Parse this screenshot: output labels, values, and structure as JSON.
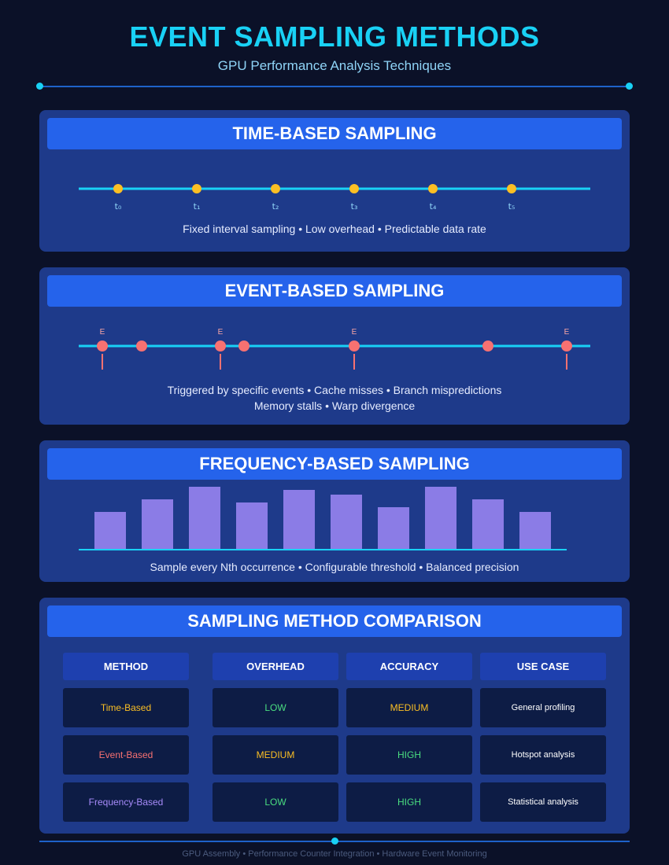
{
  "header": {
    "title": "EVENT SAMPLING METHODS",
    "subtitle": "GPU Performance Analysis Techniques"
  },
  "time_based": {
    "title": "TIME-BASED SAMPLING",
    "tick_labels": [
      "t₀",
      "t₁",
      "t₂",
      "t₃",
      "t₄",
      "t₅"
    ],
    "caption": "Fixed interval sampling • Low overhead • Predictable data rate"
  },
  "event_based": {
    "title": "EVENT-BASED SAMPLING",
    "event_marker_label": "E",
    "caption_line1": "Triggered by specific events • Cache misses • Branch mispredictions",
    "caption_line2": "Memory stalls • Warp divergence"
  },
  "frequency_based": {
    "title": "FREQUENCY-BASED SAMPLING",
    "bar_levels": [
      0.6,
      0.8,
      1.0,
      0.75,
      0.95,
      0.87,
      0.67,
      1.0,
      0.8,
      0.6
    ],
    "caption": "Sample every Nth occurrence • Configurable threshold • Balanced precision"
  },
  "comparison": {
    "title": "SAMPLING METHOD COMPARISON",
    "columns": [
      "METHOD",
      "OVERHEAD",
      "ACCURACY",
      "USE CASE"
    ],
    "rows": [
      [
        {
          "text": "Time-Based",
          "color": "#fbbf24"
        },
        {
          "text": "LOW",
          "color": "#4ade80"
        },
        {
          "text": "MEDIUM",
          "color": "#fbbf24"
        },
        {
          "text": "General profiling",
          "color": "#ffffff"
        }
      ],
      [
        {
          "text": "Event-Based",
          "color": "#f87171"
        },
        {
          "text": "MEDIUM",
          "color": "#fbbf24"
        },
        {
          "text": "HIGH",
          "color": "#4ade80"
        },
        {
          "text": "Hotspot analysis",
          "color": "#ffffff"
        }
      ],
      [
        {
          "text": "Frequency-Based",
          "color": "#a78bfa"
        },
        {
          "text": "LOW",
          "color": "#4ade80"
        },
        {
          "text": "HIGH",
          "color": "#4ade80"
        },
        {
          "text": "Statistical analysis",
          "color": "#ffffff"
        }
      ]
    ]
  },
  "footer": {
    "text": "GPU Assembly • Performance Counter Integration • Hardware Event Monitoring"
  },
  "colors": {
    "accent": "#19d1f5",
    "time_marker": "#fbbf24",
    "event_marker": "#f87171",
    "frequency_bar": "#8b7ce6",
    "panel": "#1e3a8a",
    "panel_header": "#2563eb"
  }
}
